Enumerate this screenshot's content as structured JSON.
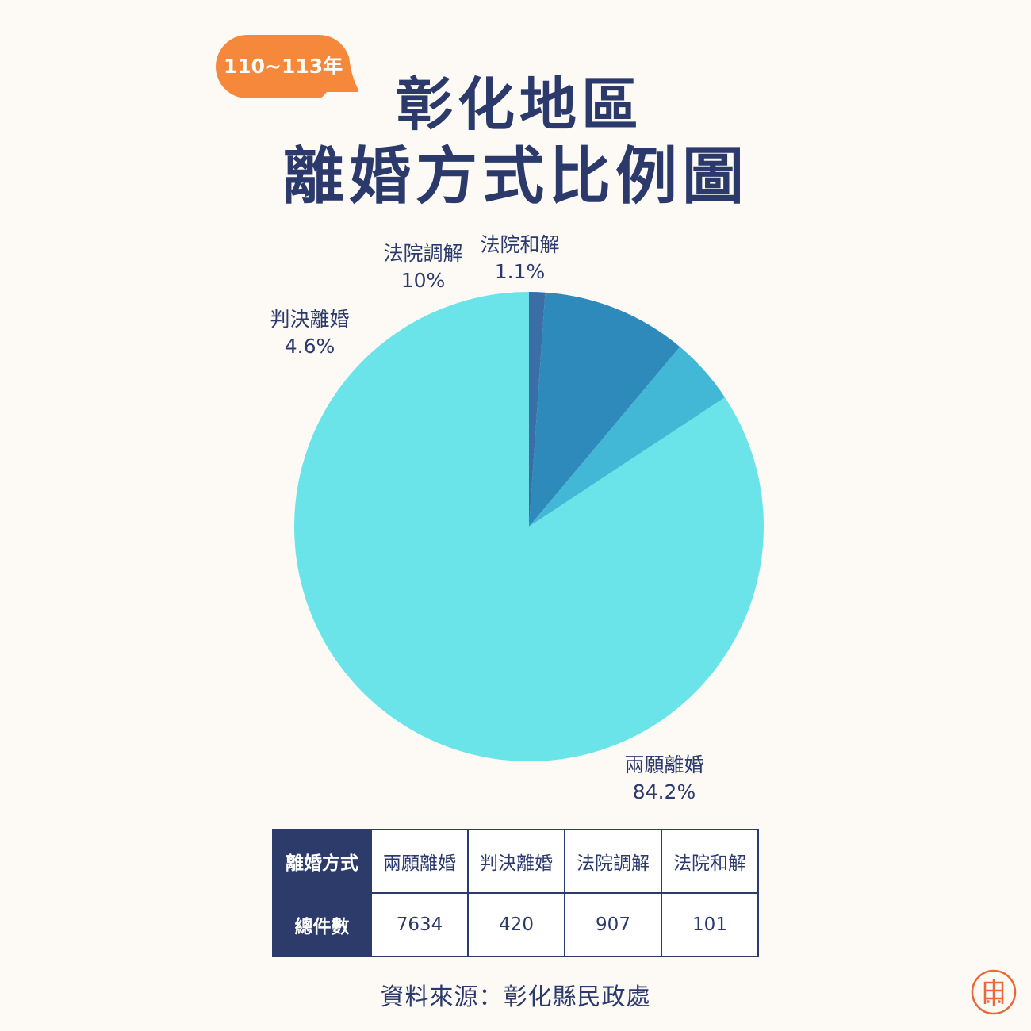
{
  "badge": {
    "text": "110~113年",
    "color": "#f5883b"
  },
  "title": {
    "line1": "彰化地區",
    "line2": "離婚方式比例圖"
  },
  "chart_data": {
    "type": "pie",
    "start_angle": "12 o'clock",
    "direction": "counter-clockwise",
    "slices": [
      {
        "label": "兩願離婚",
        "value": 84.2,
        "display": "84.2%",
        "color": "#6ae4e8"
      },
      {
        "label": "判決離婚",
        "value": 4.6,
        "display": "4.6%",
        "color": "#43b8d6"
      },
      {
        "label": "法院調解",
        "value": 10,
        "display": "10%",
        "color": "#2e8aba"
      },
      {
        "label": "法院和解",
        "value": 1.1,
        "display": "1.1%",
        "color": "#3a6ea5"
      }
    ]
  },
  "table": {
    "row1": [
      "離婚方式",
      "兩願離婚",
      "判決離婚",
      "法院調解",
      "法院和解"
    ],
    "row2": [
      "總件數",
      "7634",
      "420",
      "907",
      "101"
    ]
  },
  "source": "資料來源：彰化縣民政處",
  "colors": {
    "primary": "#2b3a6b",
    "background": "#fdf9f4",
    "logo": "#e8683a"
  }
}
